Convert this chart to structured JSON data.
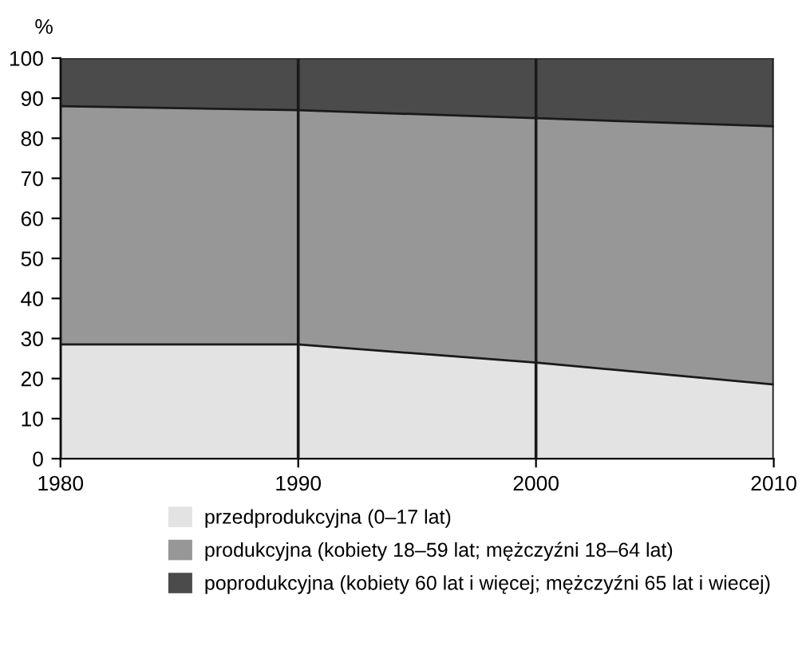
{
  "chart_data": {
    "type": "area",
    "stacked": true,
    "ylabel": "%",
    "x": [
      1980,
      1990,
      2000,
      2010
    ],
    "series": [
      {
        "name": "przedprodukcyjna (0–17 lat)",
        "color": "#e3e3e3",
        "values": [
          28.5,
          28.5,
          24,
          18.5
        ]
      },
      {
        "name": "produkcyjna (kobiety 18–59 lat; mężczyźni 18–64 lat)",
        "color": "#979797",
        "values": [
          59.5,
          58.5,
          61,
          64.5
        ]
      },
      {
        "name": "poprodukcyjna (kobiety 60 lat i więcej; mężczyźni 65 lat i wiecej)",
        "color": "#4b4b4b",
        "values": [
          12,
          13,
          15,
          17
        ]
      }
    ],
    "xlim": [
      1980,
      2010
    ],
    "xticks": [
      1980,
      1990,
      2000,
      2010
    ],
    "ylim": [
      0,
      100
    ],
    "yticks": [
      0,
      10,
      20,
      30,
      40,
      50,
      60,
      70,
      80,
      90,
      100
    ],
    "grid": "x",
    "legend": "bottom"
  }
}
